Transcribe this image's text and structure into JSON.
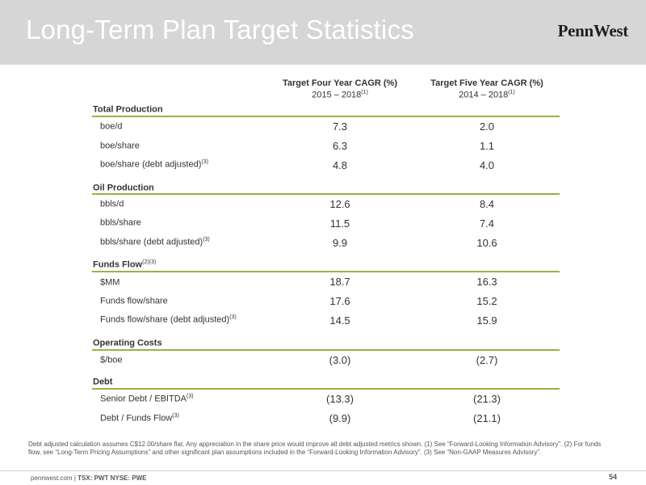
{
  "header": {
    "title": "Long-Term Plan Target Statistics",
    "logo": "PennWest"
  },
  "columns": [
    {
      "heading": "Target Four Year CAGR (%)",
      "period": "2015 – 2018",
      "note": "(1)"
    },
    {
      "heading": "Target Five Year CAGR (%)",
      "period": "2014 – 2018",
      "note": "(1)"
    }
  ],
  "sections": [
    {
      "title": "Total Production",
      "note": "",
      "rows": [
        {
          "label": "boe/d",
          "note": "",
          "v1": "7.3",
          "v2": "2.0"
        },
        {
          "label": "boe/share",
          "note": "",
          "v1": "6.3",
          "v2": "1.1"
        },
        {
          "label": "boe/share (debt adjusted)",
          "note": "(3)",
          "v1": "4.8",
          "v2": "4.0"
        }
      ]
    },
    {
      "title": "Oil Production",
      "note": "",
      "rows": [
        {
          "label": "bbls/d",
          "note": "",
          "v1": "12.6",
          "v2": "8.4"
        },
        {
          "label": "bbls/share",
          "note": "",
          "v1": "11.5",
          "v2": "7.4"
        },
        {
          "label": "bbls/share (debt adjusted)",
          "note": "(3)",
          "v1": "9.9",
          "v2": "10.6"
        }
      ]
    },
    {
      "title": "Funds Flow",
      "note": "(2)(3)",
      "rows": [
        {
          "label": "$MM",
          "note": "",
          "v1": "18.7",
          "v2": "16.3"
        },
        {
          "label": "Funds flow/share",
          "note": "",
          "v1": "17.6",
          "v2": "15.2"
        },
        {
          "label": "Funds flow/share (debt adjusted)",
          "note": "(3)",
          "v1": "14.5",
          "v2": "15.9"
        }
      ]
    },
    {
      "title": "Operating Costs",
      "note": "",
      "rows": [
        {
          "label": "$/boe",
          "note": "",
          "v1": "(3.0)",
          "v2": "(2.7)"
        }
      ]
    },
    {
      "title": "Debt",
      "note": "",
      "rows": [
        {
          "label": "Senior Debt / EBITDA",
          "note": "(3)",
          "v1": "(13.3)",
          "v2": "(21.3)"
        },
        {
          "label": "Debt / Funds Flow",
          "note": "(3)",
          "v1": "(9.9)",
          "v2": "(21.1)"
        }
      ]
    }
  ],
  "footnote": "Debt adjusted calculation assumes C$12.00/share flat. Any appreciation in the share price would improve all debt adjusted metrics shown. (1) See “Forward-Looking Information Advisory”. (2) For funds flow, see “Long-Term Pricing Assumptions” and other significant plan assumptions included in the “Forward-Looking Information Advisory”. (3) See “Non-GAAP Measures Advisory”.",
  "footer": {
    "site": "pennwest.com",
    "ticker": "TSX: PWT  NYSE: PWE",
    "page": "54"
  }
}
